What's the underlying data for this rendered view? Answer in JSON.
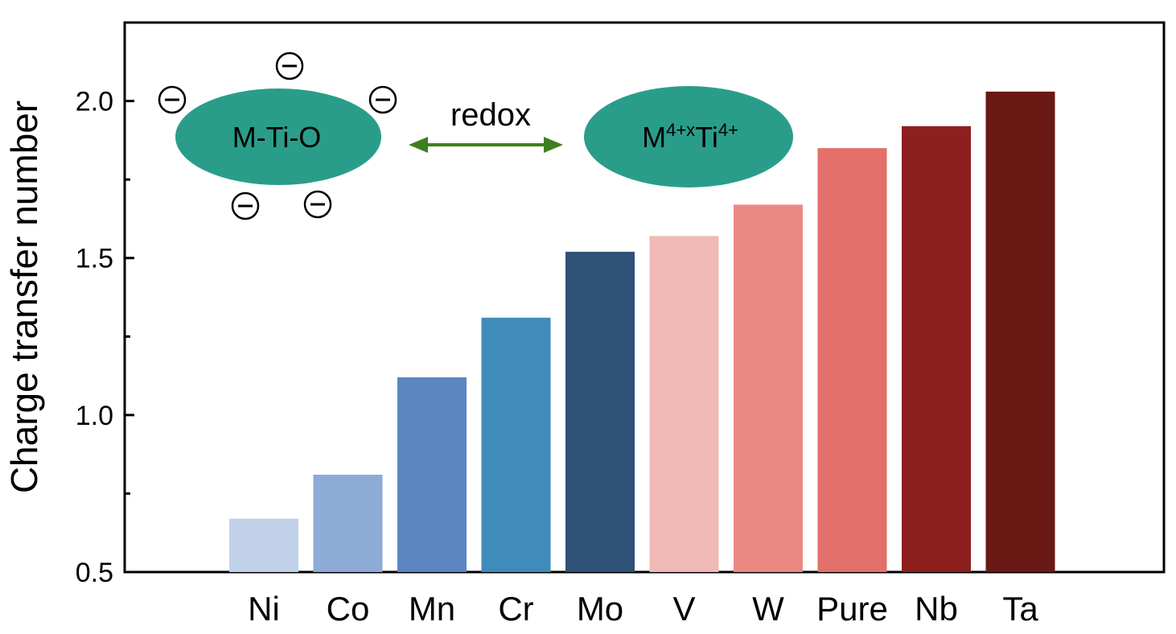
{
  "chart_data": {
    "type": "bar",
    "title": "",
    "xlabel": "",
    "ylabel": "Charge transfer number",
    "ylim": [
      0.5,
      2.25
    ],
    "yticks": [
      "0.5",
      "1.0",
      "1.5",
      "2.0"
    ],
    "grid": false,
    "categories": [
      "Ni",
      "Co",
      "Mn",
      "Cr",
      "Mo",
      "V",
      "W",
      "Pure",
      "Nb",
      "Ta"
    ],
    "values": [
      0.67,
      0.81,
      1.12,
      1.31,
      1.52,
      1.57,
      1.67,
      1.85,
      1.92,
      2.03
    ],
    "bar_colors": [
      "#c0d1e9",
      "#8dabd6",
      "#5b86c0",
      "#3f8bb9",
      "#2f5077",
      "#f0b9b5",
      "#e98882",
      "#e3706a",
      "#8e1f1f",
      "#6a1813"
    ]
  },
  "annotation": {
    "left_label": "M-Ti-O",
    "redox_label": "redox",
    "right_label_base": "M",
    "right_label_sup1": "4+x",
    "right_label_mid": "Ti",
    "right_label_sup2": "4+",
    "ellipse_color": "#2a9d8a",
    "arrow_color": "#3f7f1f",
    "charge_symbol": "minus-in-circle"
  }
}
